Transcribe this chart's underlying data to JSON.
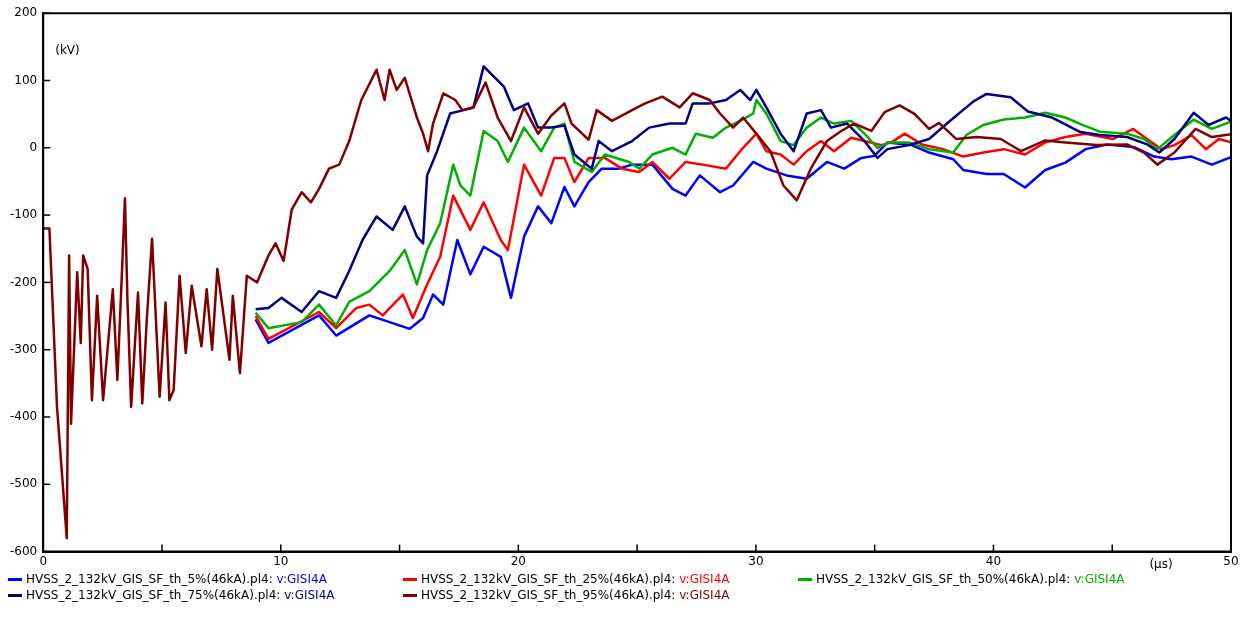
{
  "chart_data": {
    "type": "line",
    "xlabel": "(µs)",
    "ylabel": "(kV)",
    "xlim": [
      0,
      50
    ],
    "ylim": [
      -600,
      200
    ],
    "xticks": [
      0,
      {
        "value": 5,
        "label": null
      },
      10,
      {
        "value": 15,
        "label": null
      },
      20,
      {
        "value": 25,
        "label": null
      },
      30,
      {
        "value": 35,
        "label": null
      },
      40,
      {
        "value": 45,
        "label": null
      },
      50
    ],
    "yticks": [
      -600,
      -500,
      -400,
      -300,
      -200,
      -100,
      0,
      100,
      200
    ],
    "grid": false,
    "legend": "bottom",
    "line_style": "solid",
    "series": [
      {
        "name": "HVSS_2_132kV_GIS_SF_th_5%(46kA).pl4: v:GISI4A",
        "color": "#0000ff",
        "x": [
          8.94,
          9.48,
          11.61,
          12.33,
          13.73,
          14.58,
          15.43,
          15.99,
          16.41,
          16.84,
          17.43,
          17.98,
          18.54,
          19.26,
          19.69,
          20.24,
          20.83,
          21.39,
          21.94,
          22.36,
          22.96,
          23.51,
          24.23,
          24.79,
          25.64,
          26.49,
          27.04,
          27.64,
          28.49,
          29.04,
          29.89,
          30.44,
          31.29,
          32.14,
          32.99,
          33.72,
          34.44,
          34.99,
          35.54,
          36.56,
          37.29,
          38.31,
          38.73,
          39.71,
          40.43,
          41.33,
          42.18,
          43.03,
          43.88,
          44.77,
          45.92,
          46.77,
          47.49,
          48.34,
          49.19,
          50
        ],
        "values": [
          -255,
          -290,
          -249,
          -279,
          -249,
          -259,
          -269,
          -253,
          -218,
          -233,
          -137,
          -188,
          -147,
          -162,
          -223,
          -132,
          -87,
          -112,
          -58,
          -87,
          -51,
          -31,
          -31,
          -25,
          -25,
          -61,
          -71,
          -41,
          -66,
          -56,
          -21,
          -31,
          -41,
          -46,
          -21,
          -31,
          -15,
          -12,
          8,
          4,
          -7,
          -17,
          -33,
          -39,
          -39,
          -59,
          -33,
          -22,
          -2,
          5,
          1,
          -13,
          -17,
          -13,
          -25,
          -14
        ]
      },
      {
        "name": "HVSS_2_132kV_GIS_SF_th_25%(46kA).pl4: v:GISI4A",
        "color": "#ff0000",
        "x": [
          8.94,
          9.48,
          11.61,
          12.33,
          13.18,
          13.73,
          14.29,
          15.14,
          15.56,
          16.16,
          16.71,
          17.26,
          17.98,
          18.54,
          19.26,
          19.56,
          20.24,
          20.96,
          21.51,
          21.94,
          22.36,
          22.96,
          23.64,
          24.36,
          25.09,
          25.64,
          26.36,
          27.04,
          27.76,
          28.74,
          29.46,
          30.02,
          30.44,
          31.04,
          31.59,
          32.14,
          32.74,
          33.29,
          34.01,
          34.57,
          35.29,
          35.71,
          36.27,
          36.99,
          37.88,
          38.73,
          39.58,
          40.43,
          41.33,
          42.18,
          43.03,
          43.88,
          45.03,
          45.88,
          46.47,
          47.07,
          47.62,
          48.34,
          48.94,
          49.49,
          50
        ],
        "values": [
          -250,
          -284,
          -244,
          -268,
          -238,
          -233,
          -249,
          -218,
          -253,
          -203,
          -162,
          -71,
          -122,
          -81,
          -137,
          -152,
          -25,
          -71,
          -15,
          -15,
          -51,
          -15,
          -15,
          -31,
          -36,
          -21,
          -46,
          -21,
          -25,
          -31,
          0,
          21,
          -5,
          -10,
          -25,
          -5,
          10,
          -5,
          15,
          10,
          4,
          8,
          21,
          5,
          -2,
          -13,
          -7,
          -2,
          -10,
          8,
          16,
          21,
          13,
          28,
          13,
          -2,
          4,
          19,
          -2,
          13,
          8
        ]
      },
      {
        "name": "HVSS_2_132kV_GIS_SF_th_50%(46kA).pl4: v:GISI4A",
        "color": "#00b000",
        "x": [
          8.94,
          9.48,
          10.88,
          11.61,
          12.33,
          12.88,
          13.73,
          14.58,
          15.22,
          15.73,
          16.16,
          16.71,
          17.26,
          17.56,
          17.98,
          18.54,
          19.13,
          19.56,
          20.24,
          20.96,
          21.51,
          21.94,
          22.36,
          23.09,
          23.64,
          24.66,
          25.09,
          25.64,
          26.49,
          27.04,
          27.47,
          28.19,
          28.74,
          29.34,
          29.89,
          30.02,
          30.44,
          31.04,
          31.59,
          32.14,
          32.74,
          33.29,
          34.01,
          34.57,
          35.12,
          35.59,
          36.44,
          37.29,
          38.31,
          38.86,
          39.58,
          40.43,
          41.33,
          42.18,
          43.03,
          43.75,
          44.47,
          45.62,
          46.34,
          46.9,
          47.62,
          48.43,
          49.19,
          50
        ],
        "values": [
          -245,
          -268,
          -259,
          -233,
          -264,
          -229,
          -213,
          -183,
          -152,
          -203,
          -152,
          -112,
          -25,
          -56,
          -71,
          25,
          10,
          -21,
          30,
          -5,
          30,
          36,
          -21,
          -36,
          -10,
          -21,
          -31,
          -10,
          0,
          -10,
          21,
          15,
          30,
          40,
          51,
          71,
          51,
          10,
          4,
          30,
          45,
          36,
          40,
          21,
          0,
          8,
          8,
          -2,
          -7,
          19,
          34,
          42,
          45,
          52,
          45,
          34,
          24,
          21,
          13,
          -2,
          19,
          42,
          28,
          39
        ]
      },
      {
        "name": "HVSS_2_132kV_GIS_SF_th_75%(46kA).pl4: v:GISI4A",
        "color": "#000080",
        "x": [
          8.94,
          9.48,
          10.03,
          10.88,
          11.61,
          12.33,
          12.88,
          13.44,
          14.03,
          14.71,
          15.22,
          15.73,
          15.99,
          16.16,
          16.58,
          17.13,
          17.69,
          18.11,
          18.54,
          18.96,
          19.39,
          19.81,
          20.41,
          20.83,
          21.39,
          21.94,
          22.36,
          23.09,
          23.38,
          23.94,
          24.79,
          25.51,
          26.36,
          27.04,
          27.34,
          28.06,
          28.74,
          29.34,
          29.76,
          30.02,
          30.44,
          31.04,
          31.59,
          32.14,
          32.74,
          33.16,
          33.84,
          34.57,
          35.12,
          35.54,
          36.44,
          37.29,
          38.14,
          39.16,
          39.71,
          40.73,
          41.45,
          42.47,
          43.62,
          44.47,
          45.62,
          46.47,
          46.98,
          47.62,
          48.43,
          49.06,
          49.79,
          50
        ],
        "values": [
          -240,
          -238,
          -223,
          -244,
          -213,
          -223,
          -183,
          -137,
          -102,
          -122,
          -87,
          -132,
          -142,
          -41,
          -5,
          51,
          56,
          60,
          121,
          106,
          91,
          56,
          66,
          30,
          30,
          33,
          -10,
          -31,
          10,
          -5,
          10,
          30,
          36,
          36,
          66,
          66,
          71,
          86,
          71,
          86,
          60,
          21,
          -5,
          51,
          56,
          30,
          36,
          10,
          -15,
          -2,
          4,
          13,
          39,
          69,
          80,
          75,
          54,
          45,
          24,
          19,
          16,
          5,
          -7,
          13,
          52,
          34,
          45,
          40
        ]
      },
      {
        "name": "HVSS_2_132kV_GIS_SF_th_95%(46kA).pl4: v:GISI4A",
        "color": "#800000",
        "x": [
          0,
          0.26,
          0.58,
          0.99,
          1.09,
          1.17,
          1.43,
          1.58,
          1.68,
          1.87,
          2.05,
          2.27,
          2.52,
          2.93,
          3.12,
          3.29,
          3.44,
          3.54,
          3.7,
          3.99,
          4.17,
          4.36,
          4.58,
          4.9,
          5.15,
          5.31,
          5.49,
          5.74,
          6,
          6.25,
          6.66,
          6.88,
          7.11,
          7.33,
          7.84,
          7.98,
          8.28,
          8.57,
          9,
          9.48,
          9.78,
          10.12,
          10.46,
          10.88,
          11.27,
          11.61,
          12.03,
          12.46,
          12.88,
          13.39,
          14.03,
          14.37,
          14.58,
          14.88,
          15.22,
          15.73,
          15.99,
          16.2,
          16.41,
          16.84,
          17.35,
          17.64,
          18.11,
          18.62,
          19.13,
          19.69,
          20.24,
          20.83,
          21.39,
          21.94,
          22.24,
          22.96,
          23.3,
          23.94,
          24.79,
          25.34,
          26.06,
          26.79,
          27.34,
          28.06,
          28.49,
          29.04,
          29.46,
          30.02,
          30.61,
          31.16,
          31.72,
          32.31,
          32.99,
          33.59,
          34.14,
          34.86,
          35.42,
          36.05,
          36.69,
          37.29,
          37.71,
          38.44,
          39.29,
          40.31,
          41.16,
          42.18,
          43.03,
          44.34,
          45.62,
          46.34,
          46.9,
          47.62,
          48.51,
          49.19,
          50
        ],
        "values": [
          -120,
          -120,
          -385,
          -580,
          -160,
          -410,
          -185,
          -290,
          -160,
          -180,
          -375,
          -220,
          -375,
          -210,
          -345,
          -205,
          -75,
          -220,
          -385,
          -215,
          -380,
          -255,
          -135,
          -370,
          -230,
          -375,
          -360,
          -190,
          -305,
          -205,
          -295,
          -210,
          -300,
          -180,
          -315,
          -220,
          -335,
          -190,
          -200,
          -160,
          -142,
          -168,
          -92,
          -66,
          -81,
          -61,
          -31,
          -25,
          10,
          71,
          116,
          71,
          116,
          86,
          104,
          45,
          21,
          -5,
          36,
          81,
          71,
          56,
          60,
          97,
          45,
          10,
          60,
          21,
          48,
          66,
          36,
          12,
          56,
          40,
          56,
          66,
          76,
          60,
          81,
          71,
          51,
          30,
          45,
          21,
          -5,
          -56,
          -78,
          -31,
          10,
          25,
          36,
          25,
          53,
          63,
          50,
          28,
          37,
          13,
          16,
          13,
          -5,
          11,
          8,
          4,
          5,
          -7,
          -25,
          -7,
          28,
          16,
          20
        ]
      }
    ]
  }
}
